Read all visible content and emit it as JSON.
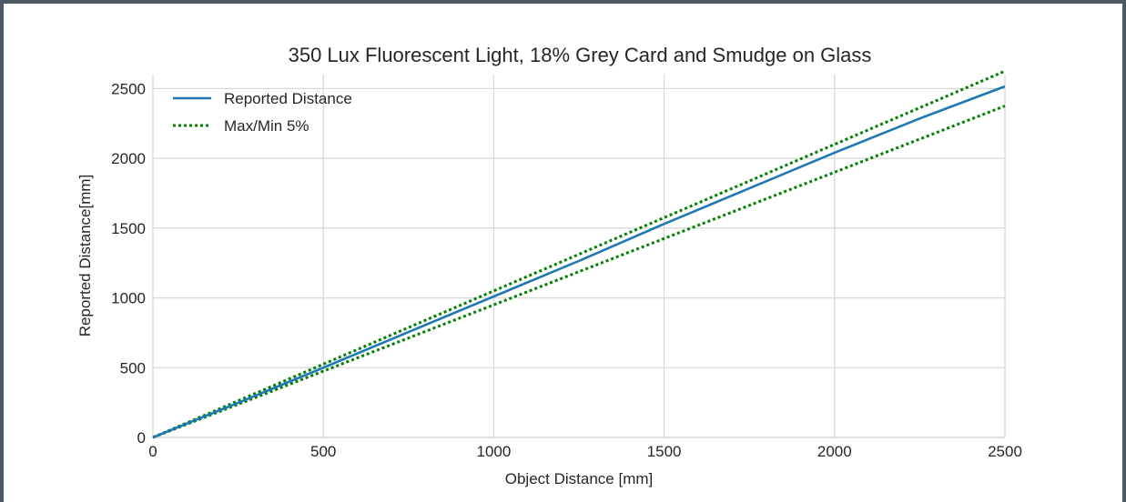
{
  "chart_data": {
    "type": "line",
    "title": "350 Lux Fluorescent Light, 18% Grey Card and Smudge on Glass",
    "xlabel": "Object Distance [mm]",
    "ylabel": "Reported Distance[mm]",
    "xlim": [
      0,
      2500
    ],
    "ylim": [
      0,
      2600
    ],
    "xticks": [
      0,
      500,
      1000,
      1500,
      2000,
      2500
    ],
    "yticks": [
      0,
      500,
      1000,
      1500,
      2000,
      2500
    ],
    "grid": true,
    "legend_position": "top-left",
    "series": [
      {
        "name": "Reported Distance",
        "style": "solid",
        "color": "#1f77b4",
        "x": [
          0,
          100,
          250,
          500,
          750,
          1000,
          1250,
          1500,
          1750,
          2000,
          2250,
          2500
        ],
        "y": [
          0,
          100,
          248,
          500,
          755,
          1010,
          1265,
          1530,
          1785,
          2040,
          2285,
          2515
        ]
      },
      {
        "name": "Max/Min 5%",
        "style": "dotted",
        "color": "#008000",
        "x": [
          0,
          2500
        ],
        "y": [
          0,
          2625
        ]
      },
      {
        "name": "",
        "style": "dotted",
        "color": "#008000",
        "x": [
          0,
          2500
        ],
        "y": [
          0,
          2375
        ]
      }
    ]
  }
}
